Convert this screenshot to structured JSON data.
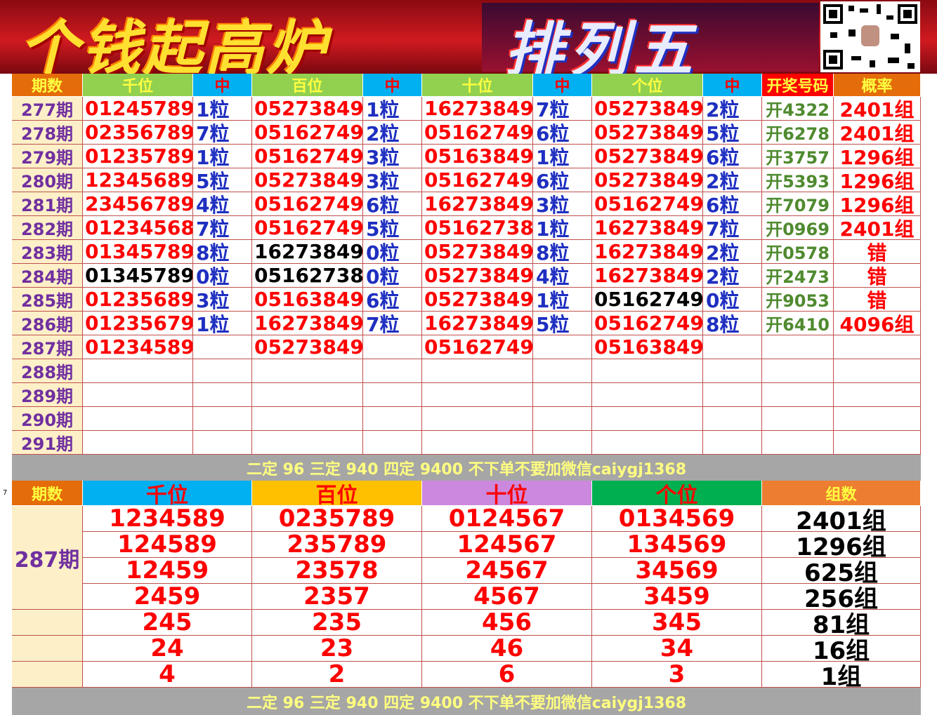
{
  "banner": {
    "title": "个钱起高炉",
    "subtitle": "排列五"
  },
  "row_marker": "7",
  "table": {
    "header": [
      "期数",
      "千位",
      "中",
      "百位",
      "中",
      "十位",
      "中",
      "个位",
      "中",
      "开奖号码",
      "概率"
    ],
    "rows": [
      [
        "277期",
        "01245789",
        "1粒",
        "05273849",
        "1粒",
        "16273849",
        "7粒",
        "05273849",
        "2粒",
        "开4322",
        "2401组"
      ],
      [
        "278期",
        "02356789",
        "7粒",
        "05162749",
        "2粒",
        "05162749",
        "6粒",
        "05273849",
        "5粒",
        "开6278",
        "2401组"
      ],
      [
        "279期",
        "01235789",
        "1粒",
        "05162749",
        "3粒",
        "05163849",
        "1粒",
        "05273849",
        "6粒",
        "开3757",
        "1296组"
      ],
      [
        "280期",
        "12345689",
        "5粒",
        "05273849",
        "3粒",
        "05162749",
        "6粒",
        "05273849",
        "2粒",
        "开5393",
        "1296组"
      ],
      [
        "281期",
        "23456789",
        "4粒",
        "05162749",
        "6粒",
        "16273849",
        "3粒",
        "05162749",
        "6粒",
        "开7079",
        "1296组"
      ],
      [
        "282期",
        "01234568",
        "7粒",
        "05162749",
        "5粒",
        "05162738",
        "1粒",
        "16273849",
        "7粒",
        "开0969",
        "2401组"
      ],
      [
        "283期",
        "01345789",
        "8粒",
        {
          "text": "16273849",
          "color": "#000000"
        },
        "0粒",
        "05273849",
        "8粒",
        "16273849",
        "2粒",
        "开0578",
        "错"
      ],
      [
        "284期",
        {
          "text": "01345789",
          "color": "#000000"
        },
        "0粒",
        {
          "text": "05162738",
          "color": "#000000"
        },
        "0粒",
        "05273849",
        "4粒",
        "16273849",
        "2粒",
        "开2473",
        "错"
      ],
      [
        "285期",
        "01235689",
        "3粒",
        "05163849",
        "6粒",
        "05273849",
        "1粒",
        {
          "text": "05162749",
          "color": "#000000"
        },
        "0粒",
        "开9053",
        "错"
      ],
      [
        "286期",
        "01235679",
        "1粒",
        "16273849",
        "7粒",
        "16273849",
        "5粒",
        "05162749",
        "8粒",
        "开6410",
        "4096组"
      ],
      [
        "287期",
        "01234589",
        null,
        "05273849",
        null,
        "05162749",
        null,
        "05163849",
        null,
        null,
        null
      ],
      [
        "288期",
        null,
        null,
        null,
        null,
        null,
        null,
        null,
        null,
        null,
        null
      ],
      [
        "289期",
        null,
        null,
        null,
        null,
        null,
        null,
        null,
        null,
        null,
        null
      ],
      [
        "290期",
        null,
        null,
        null,
        null,
        null,
        null,
        null,
        null,
        null,
        null
      ],
      [
        "291期",
        null,
        null,
        null,
        null,
        null,
        null,
        null,
        null,
        null,
        null
      ]
    ]
  },
  "footer_1": "二定 96 三定 940 四定 9400 不下单不要加微信caiygj1368",
  "summary": {
    "header": [
      "期数",
      "千位",
      "百位",
      "十位",
      "个位",
      "组数"
    ],
    "period": "287期",
    "rows": [
      [
        "1234589",
        "0235789",
        "0124567",
        "0134569",
        "2401组"
      ],
      [
        "124589",
        "235789",
        "124567",
        "134569",
        "1296组"
      ],
      [
        "12459",
        "23578",
        "24567",
        "34569",
        "625组"
      ],
      [
        "2459",
        "2357",
        "4567",
        "3459",
        "256组"
      ],
      [
        "245",
        "235",
        "456",
        "345",
        "81组"
      ],
      [
        "24",
        "23",
        "46",
        "34",
        "16组"
      ],
      [
        "4",
        "2",
        "6",
        "3",
        "1组"
      ]
    ]
  },
  "footer_2": "二定 96 三定 940 四定 9400 不下单不要加微信caiygj1368"
}
